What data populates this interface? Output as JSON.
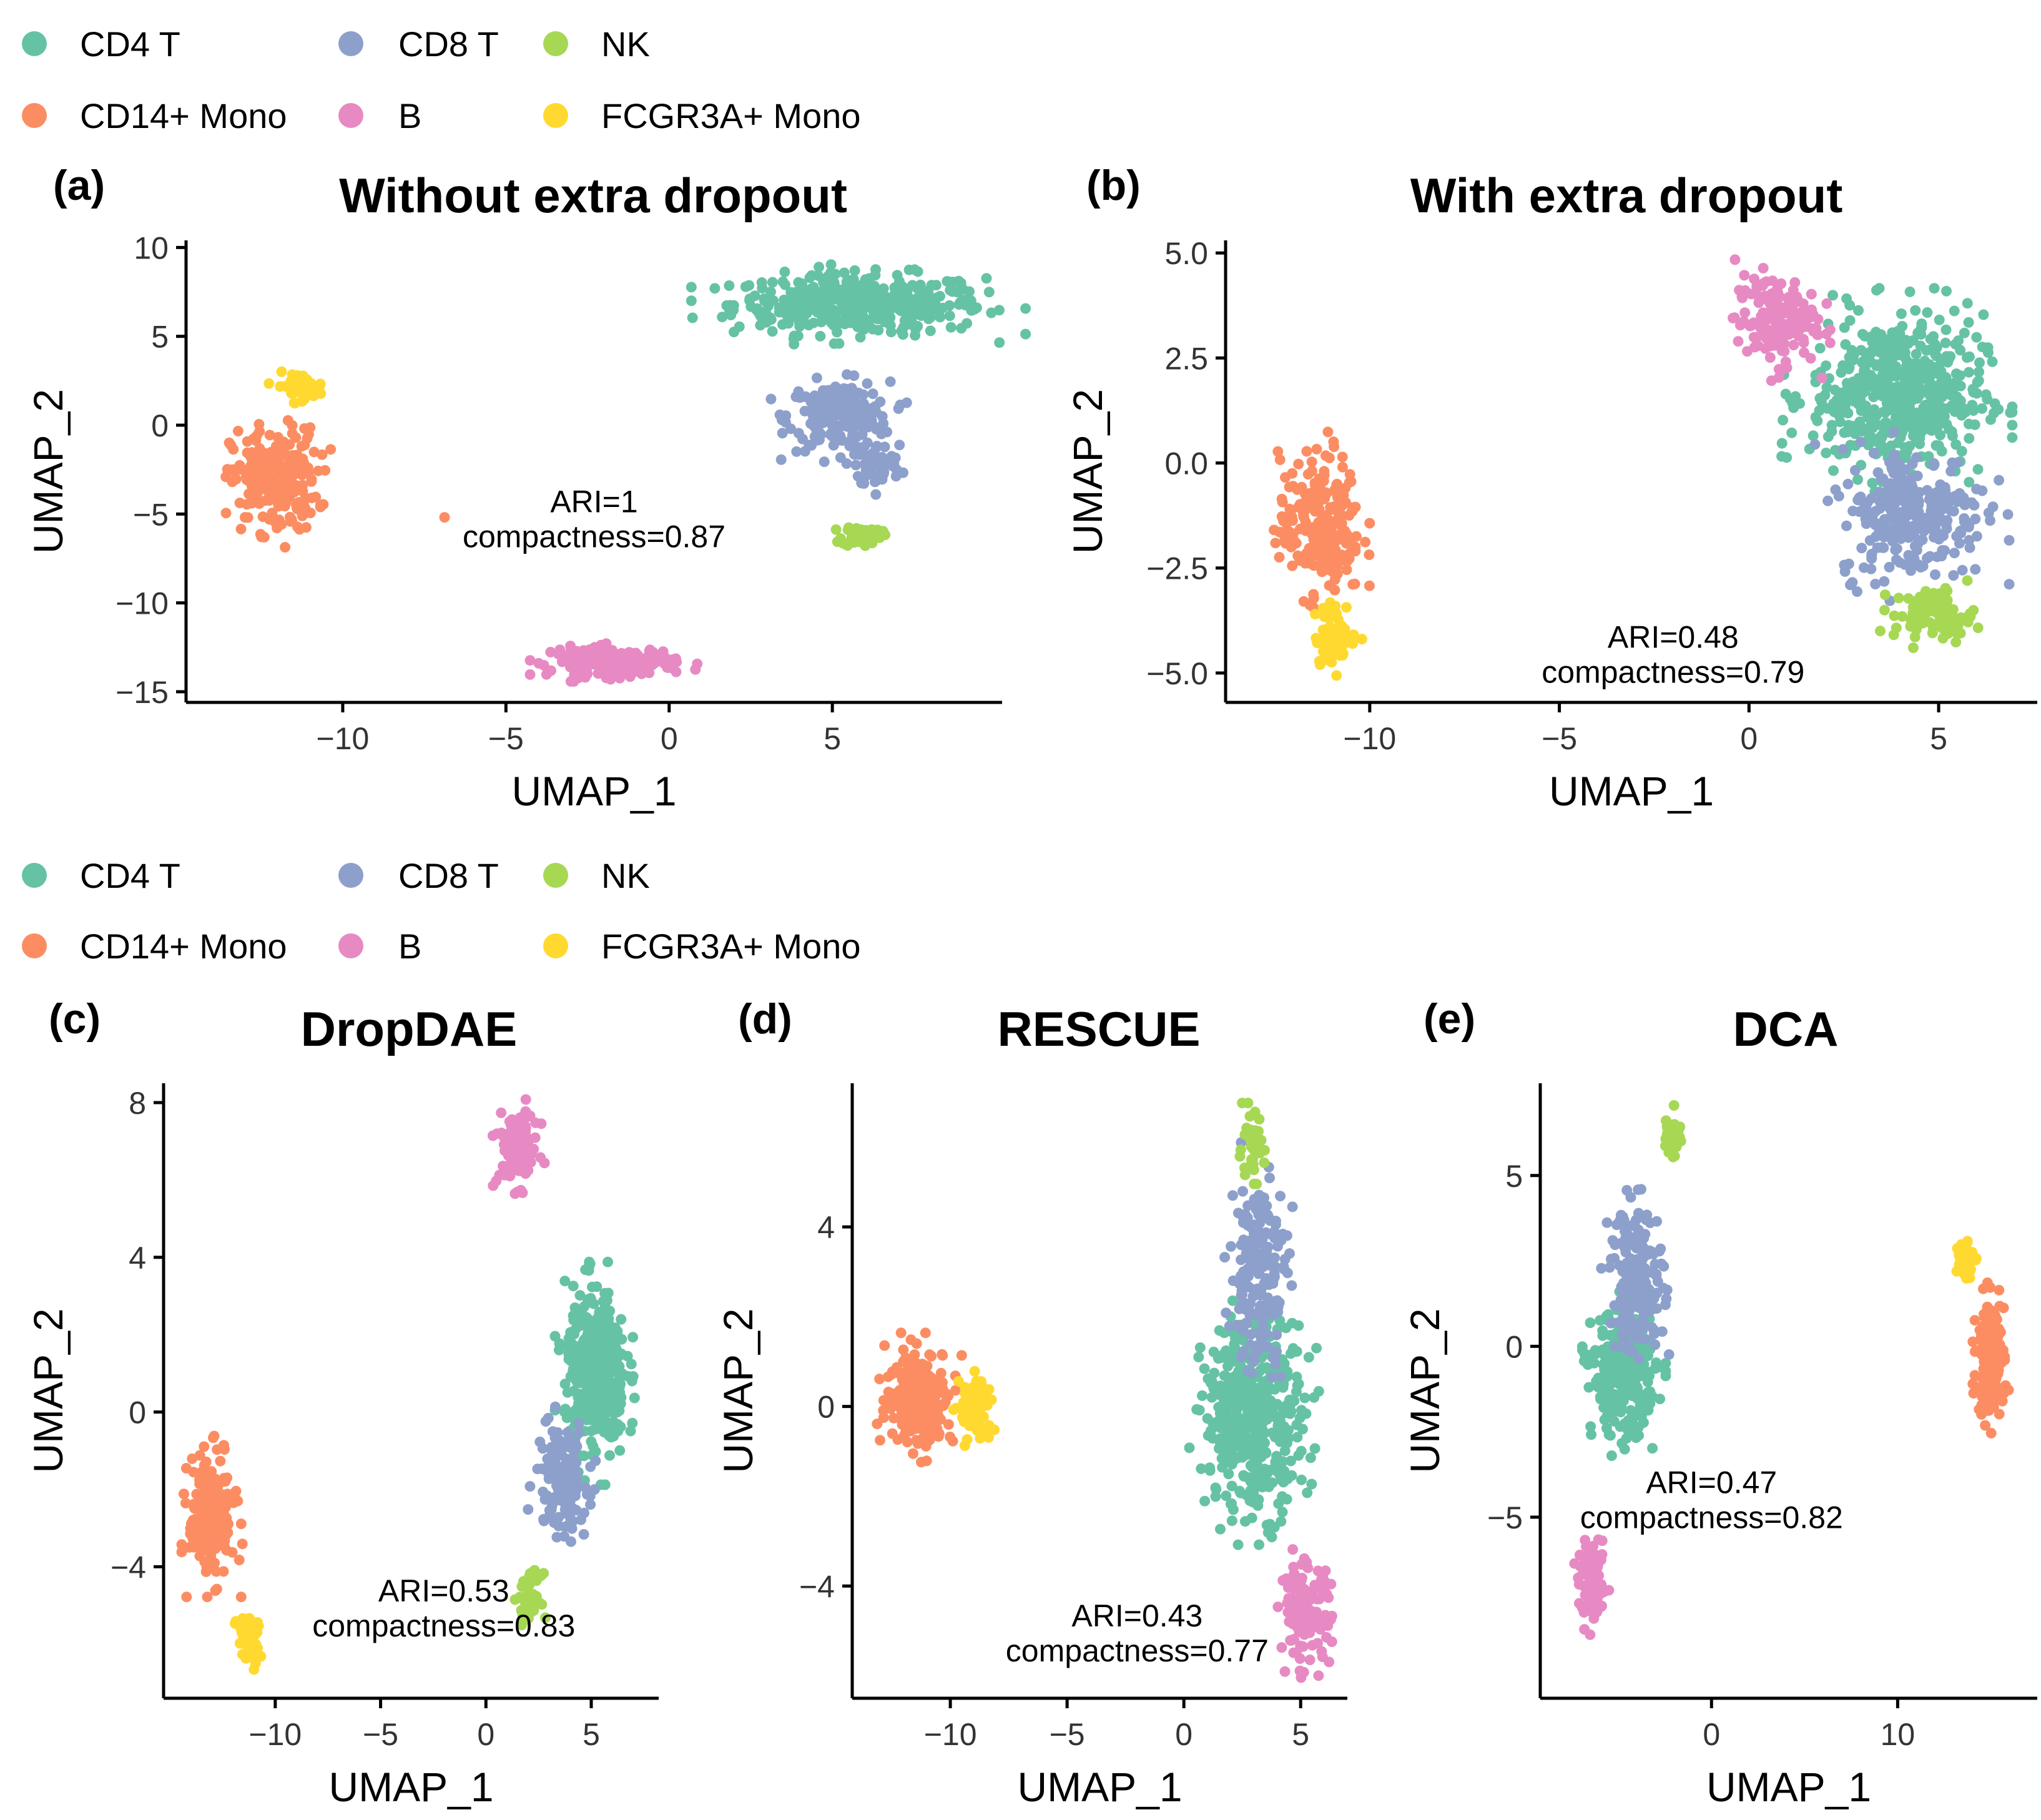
{
  "legend": {
    "entries": [
      {
        "key": "cd4t",
        "label": "CD4 T",
        "color": "#66C2A5"
      },
      {
        "key": "cd8t",
        "label": "CD8 T",
        "color": "#8DA0CB"
      },
      {
        "key": "nk",
        "label": "NK",
        "color": "#A6D854"
      },
      {
        "key": "cd14",
        "label": "CD14+ Mono",
        "color": "#FC8D62"
      },
      {
        "key": "b",
        "label": "B",
        "color": "#E78AC3"
      },
      {
        "key": "fcgr",
        "label": "FCGR3A+ Mono",
        "color": "#FFD92F"
      }
    ]
  },
  "chart_data": [
    {
      "id": "a",
      "type": "scatter",
      "panel_label": "(a)",
      "title": "Without extra dropout",
      "xlabel": "UMAP_1",
      "ylabel": "UMAP_2",
      "xlim": [
        -14.8,
        10.2
      ],
      "ylim": [
        -15.6,
        10.4
      ],
      "xticks": [
        -10,
        -5,
        0,
        5
      ],
      "xtick_labels": [
        "−10",
        "−5",
        "0",
        "5"
      ],
      "yticks": [
        10,
        5,
        0,
        -5,
        -10,
        -15
      ],
      "ytick_labels": [
        "10",
        "5",
        "0",
        "−5",
        "−10",
        "−15"
      ],
      "annotation": {
        "lines": [
          "ARI=1",
          "compactness=0.87"
        ],
        "x": -2.3,
        "y": -4.9
      },
      "clusters": [
        {
          "type": "cd4t",
          "center": [
            5.8,
            6.8
          ],
          "spread": [
            3.2,
            1.4
          ],
          "n": 430
        },
        {
          "type": "cd8t",
          "center": [
            5.2,
            0.5
          ],
          "spread": [
            1.3,
            1.6
          ],
          "n": 200
        },
        {
          "type": "cd8t",
          "center": [
            6.4,
            -2.3
          ],
          "spread": [
            0.6,
            1.0
          ],
          "n": 60
        },
        {
          "type": "nk",
          "center": [
            5.9,
            -6.2
          ],
          "spread": [
            0.5,
            0.5
          ],
          "n": 60
        },
        {
          "type": "cd14",
          "center": [
            -12.1,
            -3.1
          ],
          "spread": [
            1.1,
            2.4
          ],
          "n": 230
        },
        {
          "type": "fcgr",
          "center": [
            -11.3,
            2.2
          ],
          "spread": [
            0.6,
            0.6
          ],
          "n": 50
        },
        {
          "type": "b",
          "center": [
            -1.7,
            -13.3
          ],
          "spread": [
            1.6,
            0.7
          ],
          "n": 160
        },
        {
          "type": "cd14",
          "center": [
            -6.9,
            -5.2
          ],
          "spread": [
            0.02,
            0.02
          ],
          "n": 1
        }
      ]
    },
    {
      "id": "b",
      "type": "scatter",
      "panel_label": "(b)",
      "title": "With extra dropout",
      "xlabel": "UMAP_1",
      "ylabel": "UMAP_2",
      "xlim": [
        -13.8,
        7.6
      ],
      "ylim": [
        -5.7,
        5.3
      ],
      "xticks": [
        -10,
        -5,
        0,
        5
      ],
      "xtick_labels": [
        "−10",
        "−5",
        "0",
        "5"
      ],
      "yticks": [
        5,
        2.5,
        0,
        -2.5,
        -5
      ],
      "ytick_labels": [
        "5.0",
        "2.5",
        "0.0",
        "−2.5",
        "−5.0"
      ],
      "annotation": {
        "lines": [
          "ARI=0.48",
          "compactness=0.79"
        ],
        "x": -2.0,
        "y": -4.4
      },
      "clusters": [
        {
          "type": "cd4t",
          "center": [
            3.9,
            1.6
          ],
          "spread": [
            1.9,
            1.6
          ],
          "n": 520
        },
        {
          "type": "cd8t",
          "center": [
            4.3,
            -1.2
          ],
          "spread": [
            1.6,
            1.3
          ],
          "n": 260
        },
        {
          "type": "nk",
          "center": [
            4.9,
            -3.6
          ],
          "spread": [
            0.9,
            0.5
          ],
          "n": 90
        },
        {
          "type": "b",
          "center": [
            0.7,
            3.4
          ],
          "spread": [
            0.9,
            0.9
          ],
          "n": 150
        },
        {
          "type": "cd14",
          "center": [
            -11.3,
            -1.5
          ],
          "spread": [
            0.9,
            1.4
          ],
          "n": 230
        },
        {
          "type": "fcgr",
          "center": [
            -10.9,
            -4.1
          ],
          "spread": [
            0.45,
            0.6
          ],
          "n": 70
        }
      ]
    },
    {
      "id": "c",
      "type": "scatter",
      "panel_label": "(c)",
      "title": "DropDAE",
      "xlabel": "UMAP_1",
      "ylabel": "UMAP_2",
      "xlim": [
        -15.3,
        8.2
      ],
      "ylim": [
        -7.4,
        8.5
      ],
      "xticks": [
        -10,
        -5,
        0,
        5
      ],
      "xtick_labels": [
        "−10",
        "−5",
        "0",
        "5"
      ],
      "yticks": [
        8,
        4,
        0,
        -4
      ],
      "ytick_labels": [
        "8",
        "4",
        "0",
        "−4"
      ],
      "annotation": {
        "lines": [
          "ARI=0.53",
          "compactness=0.83"
        ],
        "x": -2.0,
        "y": -4.9
      },
      "clusters": [
        {
          "type": "cd4t",
          "center": [
            5.2,
            1.0
          ],
          "spread": [
            1.2,
            1.8
          ],
          "n": 380
        },
        {
          "type": "cd8t",
          "center": [
            3.6,
            -1.7
          ],
          "spread": [
            1.0,
            1.2
          ],
          "n": 150
        },
        {
          "type": "nk",
          "center": [
            2.1,
            -4.8
          ],
          "spread": [
            0.45,
            0.5
          ],
          "n": 50
        },
        {
          "type": "b",
          "center": [
            1.5,
            6.8
          ],
          "spread": [
            0.8,
            0.8
          ],
          "n": 120
        },
        {
          "type": "cd14",
          "center": [
            -13.0,
            -2.7
          ],
          "spread": [
            0.9,
            1.3
          ],
          "n": 220
        },
        {
          "type": "fcgr",
          "center": [
            -11.3,
            -5.9
          ],
          "spread": [
            0.45,
            0.6
          ],
          "n": 50
        }
      ]
    },
    {
      "id": "d",
      "type": "scatter",
      "panel_label": "(d)",
      "title": "RESCUE",
      "xlabel": "UMAP_1",
      "ylabel": "UMAP_2",
      "xlim": [
        -14.2,
        7.0
      ],
      "ylim": [
        -6.5,
        7.2
      ],
      "xticks": [
        -10,
        -5,
        0,
        5
      ],
      "xtick_labels": [
        "−10",
        "−5",
        "0",
        "5"
      ],
      "yticks": [
        4,
        0,
        -4
      ],
      "ytick_labels": [
        "4",
        "0",
        "−4"
      ],
      "annotation": {
        "lines": [
          "ARI=0.43",
          "compactness=0.77"
        ],
        "x": -2.0,
        "y": -4.9
      },
      "clusters": [
        {
          "type": "cd4t",
          "center": [
            3.0,
            -0.2
          ],
          "spread": [
            1.8,
            1.8
          ],
          "n": 420
        },
        {
          "type": "cd8t",
          "center": [
            3.2,
            3.0
          ],
          "spread": [
            1.0,
            1.8
          ],
          "n": 190
        },
        {
          "type": "nk",
          "center": [
            2.9,
            5.8
          ],
          "spread": [
            0.45,
            0.6
          ],
          "n": 50
        },
        {
          "type": "b",
          "center": [
            5.2,
            -4.6
          ],
          "spread": [
            0.9,
            0.9
          ],
          "n": 130
        },
        {
          "type": "cd14",
          "center": [
            -11.3,
            0.2
          ],
          "spread": [
            1.2,
            0.9
          ],
          "n": 230
        },
        {
          "type": "fcgr",
          "center": [
            -8.9,
            -0.1
          ],
          "spread": [
            0.6,
            0.7
          ],
          "n": 70
        }
      ]
    },
    {
      "id": "e",
      "type": "scatter",
      "panel_label": "(e)",
      "title": "DCA",
      "xlabel": "UMAP_1",
      "ylabel": "UMAP_2",
      "xlim": [
        -9.2,
        17.5
      ],
      "ylim": [
        -10.3,
        7.7
      ],
      "xticks": [
        0,
        10
      ],
      "xtick_labels": [
        "0",
        "10"
      ],
      "yticks": [
        5,
        0,
        -5
      ],
      "ytick_labels": [
        "5",
        "0",
        "−5"
      ],
      "annotation": {
        "lines": [
          "ARI=0.47",
          "compactness=0.82"
        ],
        "x": 0.0,
        "y": -4.3
      },
      "clusters": [
        {
          "type": "cd4t",
          "center": [
            -4.7,
            -0.8
          ],
          "spread": [
            1.4,
            1.5
          ],
          "n": 330
        },
        {
          "type": "cd8t",
          "center": [
            -4.0,
            2.0
          ],
          "spread": [
            1.2,
            1.8
          ],
          "n": 180
        },
        {
          "type": "nk",
          "center": [
            -2.1,
            6.2
          ],
          "spread": [
            0.35,
            0.55
          ],
          "n": 40
        },
        {
          "type": "b",
          "center": [
            -6.4,
            -7.0
          ],
          "spread": [
            0.6,
            0.9
          ],
          "n": 100
        },
        {
          "type": "cd14",
          "center": [
            15.0,
            -0.3
          ],
          "spread": [
            0.6,
            1.4
          ],
          "n": 200
        },
        {
          "type": "fcgr",
          "center": [
            13.6,
            2.6
          ],
          "spread": [
            0.4,
            0.5
          ],
          "n": 50
        }
      ]
    }
  ]
}
